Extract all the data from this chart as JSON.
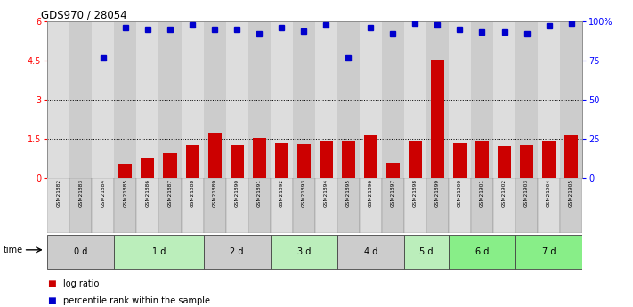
{
  "title": "GDS970 / 28054",
  "samples": [
    "GSM21882",
    "GSM21883",
    "GSM21884",
    "GSM21885",
    "GSM21886",
    "GSM21887",
    "GSM21888",
    "GSM21889",
    "GSM21890",
    "GSM21891",
    "GSM21892",
    "GSM21893",
    "GSM21894",
    "GSM21895",
    "GSM21896",
    "GSM21897",
    "GSM21898",
    "GSM21899",
    "GSM21900",
    "GSM21901",
    "GSM21902",
    "GSM21903",
    "GSM21904",
    "GSM21905"
  ],
  "log_ratio": [
    0.0,
    0.0,
    0.0,
    0.55,
    0.8,
    0.95,
    1.28,
    1.7,
    1.25,
    1.55,
    1.32,
    1.3,
    1.42,
    1.42,
    1.65,
    0.6,
    1.42,
    4.55,
    1.35,
    1.4,
    1.22,
    1.25,
    1.45,
    1.65
  ],
  "percentile_rank_pct": [
    null,
    null,
    77,
    96,
    95,
    95,
    98,
    95,
    95,
    92,
    96,
    94,
    98,
    77,
    96,
    92,
    99,
    98,
    95,
    93,
    93,
    92,
    97,
    99
  ],
  "time_groups": [
    {
      "label": "0 d",
      "start": 0,
      "end": 3,
      "color": "#cccccc"
    },
    {
      "label": "1 d",
      "start": 3,
      "end": 7,
      "color": "#bbeebb"
    },
    {
      "label": "2 d",
      "start": 7,
      "end": 10,
      "color": "#cccccc"
    },
    {
      "label": "3 d",
      "start": 10,
      "end": 13,
      "color": "#bbeebb"
    },
    {
      "label": "4 d",
      "start": 13,
      "end": 16,
      "color": "#cccccc"
    },
    {
      "label": "5 d",
      "start": 16,
      "end": 18,
      "color": "#bbeebb"
    },
    {
      "label": "6 d",
      "start": 18,
      "end": 21,
      "color": "#88ee88"
    },
    {
      "label": "7 d",
      "start": 21,
      "end": 24,
      "color": "#88ee88"
    }
  ],
  "bar_color": "#cc0000",
  "dot_color": "#0000cc",
  "left_ylim": [
    0,
    6
  ],
  "left_yticks": [
    0,
    1.5,
    3.0,
    4.5,
    6
  ],
  "left_yticklabels": [
    "0",
    "1.5",
    "3",
    "4.5",
    "6"
  ],
  "right_ylim": [
    0,
    100
  ],
  "right_yticks": [
    0,
    25,
    50,
    75,
    100
  ],
  "right_yticklabels": [
    "0",
    "25",
    "50",
    "75",
    "100%"
  ],
  "dotted_lines": [
    1.5,
    3.0,
    4.5
  ],
  "background_color": "#ffffff",
  "sample_col_colors": [
    "#dddddd",
    "#cccccc",
    "#dddddd",
    "#cccccc",
    "#dddddd",
    "#cccccc",
    "#dddddd",
    "#cccccc",
    "#dddddd",
    "#cccccc",
    "#dddddd",
    "#cccccc",
    "#dddddd",
    "#cccccc",
    "#dddddd",
    "#cccccc",
    "#dddddd",
    "#cccccc",
    "#dddddd",
    "#cccccc",
    "#dddddd",
    "#cccccc",
    "#dddddd",
    "#cccccc"
  ]
}
